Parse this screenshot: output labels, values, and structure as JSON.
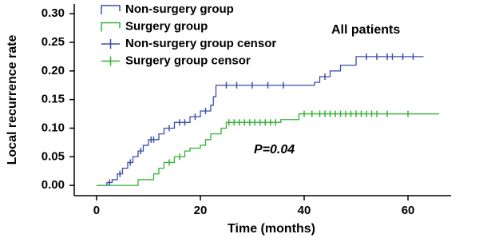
{
  "chart_data": {
    "type": "step",
    "x_label": "Time (months)",
    "y_label": "Local recurrence rate",
    "annotations": [
      "All patients",
      "P=0.04"
    ],
    "xlim": [
      -4.3,
      68.3
    ],
    "ylim": [
      -0.018,
      0.317
    ],
    "xticks": [
      0,
      20,
      40,
      60
    ],
    "yticks": [
      {
        "value": 0,
        "label": "0.00"
      },
      {
        "value": 0.05,
        "label": "0.05"
      },
      {
        "value": 0.1,
        "label": "0.10"
      },
      {
        "value": 0.15,
        "label": "0.15"
      },
      {
        "value": 0.2,
        "label": "0.20"
      },
      {
        "value": 0.25,
        "label": "0.25"
      },
      {
        "value": 0.3,
        "label": "0.30"
      }
    ],
    "series": [
      {
        "name": "Non-surgery group",
        "kind": "step",
        "color": "#3b4fa8",
        "x": [
          0,
          2,
          3,
          4,
          5,
          6,
          7,
          8,
          9,
          10,
          12,
          13,
          15,
          18,
          20,
          22,
          22.5,
          23,
          40,
          42,
          43,
          45,
          47,
          50,
          63
        ],
        "values": [
          0,
          0.005,
          0.01,
          0.02,
          0.03,
          0.04,
          0.05,
          0.06,
          0.07,
          0.08,
          0.09,
          0.1,
          0.11,
          0.12,
          0.13,
          0.14,
          0.155,
          0.175,
          0.175,
          0.18,
          0.19,
          0.2,
          0.21,
          0.225,
          0.225
        ]
      },
      {
        "name": "Surgery group",
        "kind": "step",
        "color": "#33b233",
        "x": [
          0,
          7,
          8,
          11,
          12,
          13,
          15,
          17,
          18,
          20,
          21,
          22,
          24,
          25,
          35,
          35.5,
          39,
          66
        ],
        "values": [
          0,
          0,
          0.01,
          0.02,
          0.03,
          0.04,
          0.05,
          0.06,
          0.065,
          0.07,
          0.08,
          0.09,
          0.1,
          0.11,
          0.11,
          0.115,
          0.125,
          0.125
        ]
      },
      {
        "name": "Non-surgery group censor",
        "kind": "censor",
        "color": "#3b4fa8",
        "x": [
          2.5,
          4.5,
          6.5,
          8.5,
          10.5,
          11,
          14,
          16,
          17,
          19,
          21,
          25,
          27,
          30,
          33,
          36,
          44,
          52,
          54,
          56,
          57,
          59,
          61
        ],
        "values": [
          0.005,
          0.02,
          0.04,
          0.06,
          0.08,
          0.08,
          0.1,
          0.11,
          0.11,
          0.12,
          0.13,
          0.175,
          0.175,
          0.175,
          0.175,
          0.175,
          0.19,
          0.225,
          0.225,
          0.225,
          0.225,
          0.225,
          0.225
        ]
      },
      {
        "name": "Surgery group censor",
        "kind": "censor",
        "color": "#33b233",
        "x": [
          14,
          16,
          25.5,
          26.5,
          27.5,
          28.5,
          29.5,
          30.5,
          31.5,
          32.5,
          33.5,
          34.5,
          40,
          41.5,
          43,
          44,
          45,
          46,
          47,
          48,
          49,
          50,
          51,
          52,
          53,
          54,
          56,
          60
        ],
        "values": [
          0.04,
          0.05,
          0.11,
          0.11,
          0.11,
          0.11,
          0.11,
          0.11,
          0.11,
          0.11,
          0.11,
          0.11,
          0.125,
          0.125,
          0.125,
          0.125,
          0.125,
          0.125,
          0.125,
          0.125,
          0.125,
          0.125,
          0.125,
          0.125,
          0.125,
          0.125,
          0.125,
          0.125
        ]
      }
    ]
  }
}
